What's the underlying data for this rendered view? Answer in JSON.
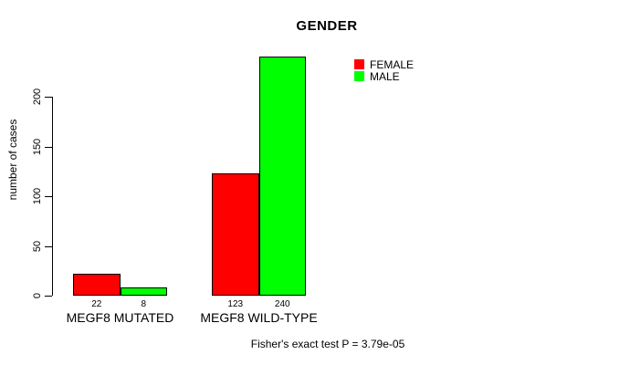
{
  "chart_data": {
    "type": "bar",
    "title": "GENDER",
    "xlabel": "",
    "ylabel": "number of cases",
    "categories": [
      "MEGF8 MUTATED",
      "MEGF8 WILD-TYPE"
    ],
    "series": [
      {
        "name": "FEMALE",
        "color": "#ff0000",
        "values": [
          22,
          123
        ]
      },
      {
        "name": "MALE",
        "color": "#00ff00",
        "values": [
          8,
          240
        ]
      }
    ],
    "bar_value_labels": [
      [
        "22",
        "8"
      ],
      [
        "123",
        "240"
      ]
    ],
    "yticks": [
      0,
      50,
      100,
      150,
      200
    ],
    "ylim": [
      0,
      248
    ],
    "grid": false,
    "legend_position": "top-right",
    "annotation": "Fisher's exact test P = 3.79e-05"
  },
  "colors": {
    "female": "#ff0000",
    "male": "#00ff00",
    "axis": "#000000",
    "text": "#000000",
    "background": "#ffffff"
  }
}
